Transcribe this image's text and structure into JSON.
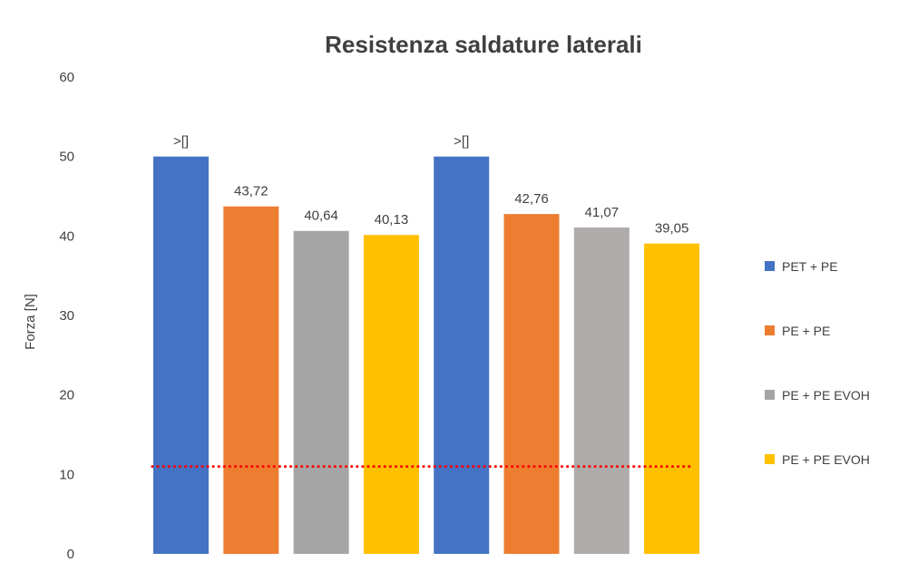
{
  "chart_data": {
    "type": "bar",
    "title": "Resistenza saldature laterali",
    "xlabel": "",
    "ylabel": "Forza [N]",
    "ylim": [
      0,
      60
    ],
    "yticks": [
      0,
      10,
      20,
      30,
      40,
      50,
      60
    ],
    "grid": false,
    "legend_position": "right",
    "legend": [
      {
        "label": "PET + PE",
        "color": "#4472C4"
      },
      {
        "label": "PE + PE",
        "color": "#ED7D31"
      },
      {
        "label": "PE + PE EVOH",
        "color": "#A5A5A5"
      },
      {
        "label": "PE + PE EVOH",
        "color": "#FFC000"
      }
    ],
    "bars": [
      {
        "value": 50,
        "label": ">[]",
        "color": "#4472C4"
      },
      {
        "value": 43.72,
        "label": "43,72",
        "color": "#ED7D31"
      },
      {
        "value": 40.64,
        "label": "40,64",
        "color": "#A5A5A5"
      },
      {
        "value": 40.13,
        "label": "40,13",
        "color": "#FFC000"
      },
      {
        "value": 50,
        "label": ">[]",
        "color": "#4472C4"
      },
      {
        "value": 42.76,
        "label": "42,76",
        "color": "#ED7D31"
      },
      {
        "value": 41.07,
        "label": "41,07",
        "color": "#AFABAB"
      },
      {
        "value": 39.05,
        "label": "39,05",
        "color": "#FFC000"
      }
    ],
    "reference_line": {
      "value": 11,
      "color": "#FF0000",
      "style": "dotted"
    }
  }
}
